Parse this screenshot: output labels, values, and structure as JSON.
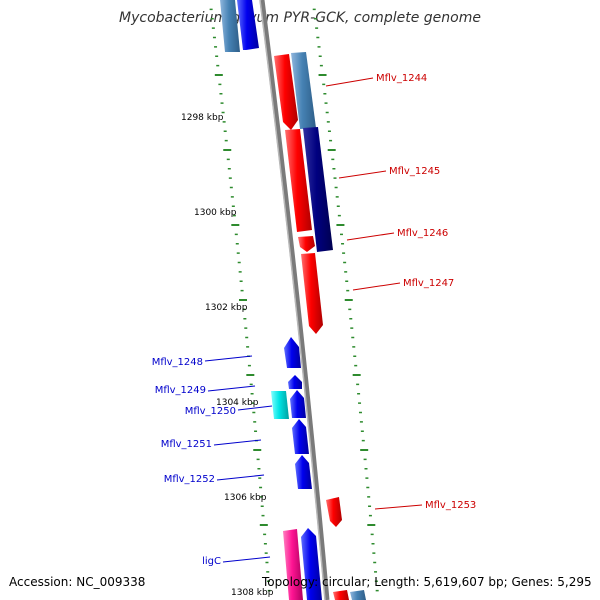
{
  "header": {
    "title": "Mycobacterium gilvum PYR-GCK, complete genome"
  },
  "footer": {
    "accession": "Accession: NC_009338",
    "summary": "Topology: circular; Length: 5,619,607 bp; Genes: 5,295"
  },
  "colors": {
    "background": "#ffffff",
    "backbone": "#888888",
    "tick": "#2e8b2e",
    "gene_red": "#ff0000",
    "gene_blue": "#0000ee",
    "gene_darkblue": "#000080",
    "gene_steelblue": "#4682b4",
    "gene_cyan": "#00e5e5",
    "gene_magenta": "#ff1493",
    "label_red": "#cc0000",
    "label_blue": "#0000cc"
  },
  "scale_labels": [
    "1298 kbp",
    "1300 kbp",
    "1302 kbp",
    "1304 kbp",
    "1306 kbp",
    "1308 kbp"
  ],
  "gene_labels": [
    {
      "text": "Mflv_1244",
      "strand": "forward"
    },
    {
      "text": "Mflv_1245",
      "strand": "forward"
    },
    {
      "text": "Mflv_1246",
      "strand": "forward"
    },
    {
      "text": "Mflv_1247",
      "strand": "forward"
    },
    {
      "text": "Mflv_1248",
      "strand": "reverse"
    },
    {
      "text": "Mflv_1249",
      "strand": "reverse"
    },
    {
      "text": "Mflv_1250",
      "strand": "reverse"
    },
    {
      "text": "Mflv_1251",
      "strand": "reverse"
    },
    {
      "text": "Mflv_1252",
      "strand": "reverse"
    },
    {
      "text": "Mflv_1253",
      "strand": "forward"
    },
    {
      "text": "ligC",
      "strand": "reverse"
    }
  ]
}
